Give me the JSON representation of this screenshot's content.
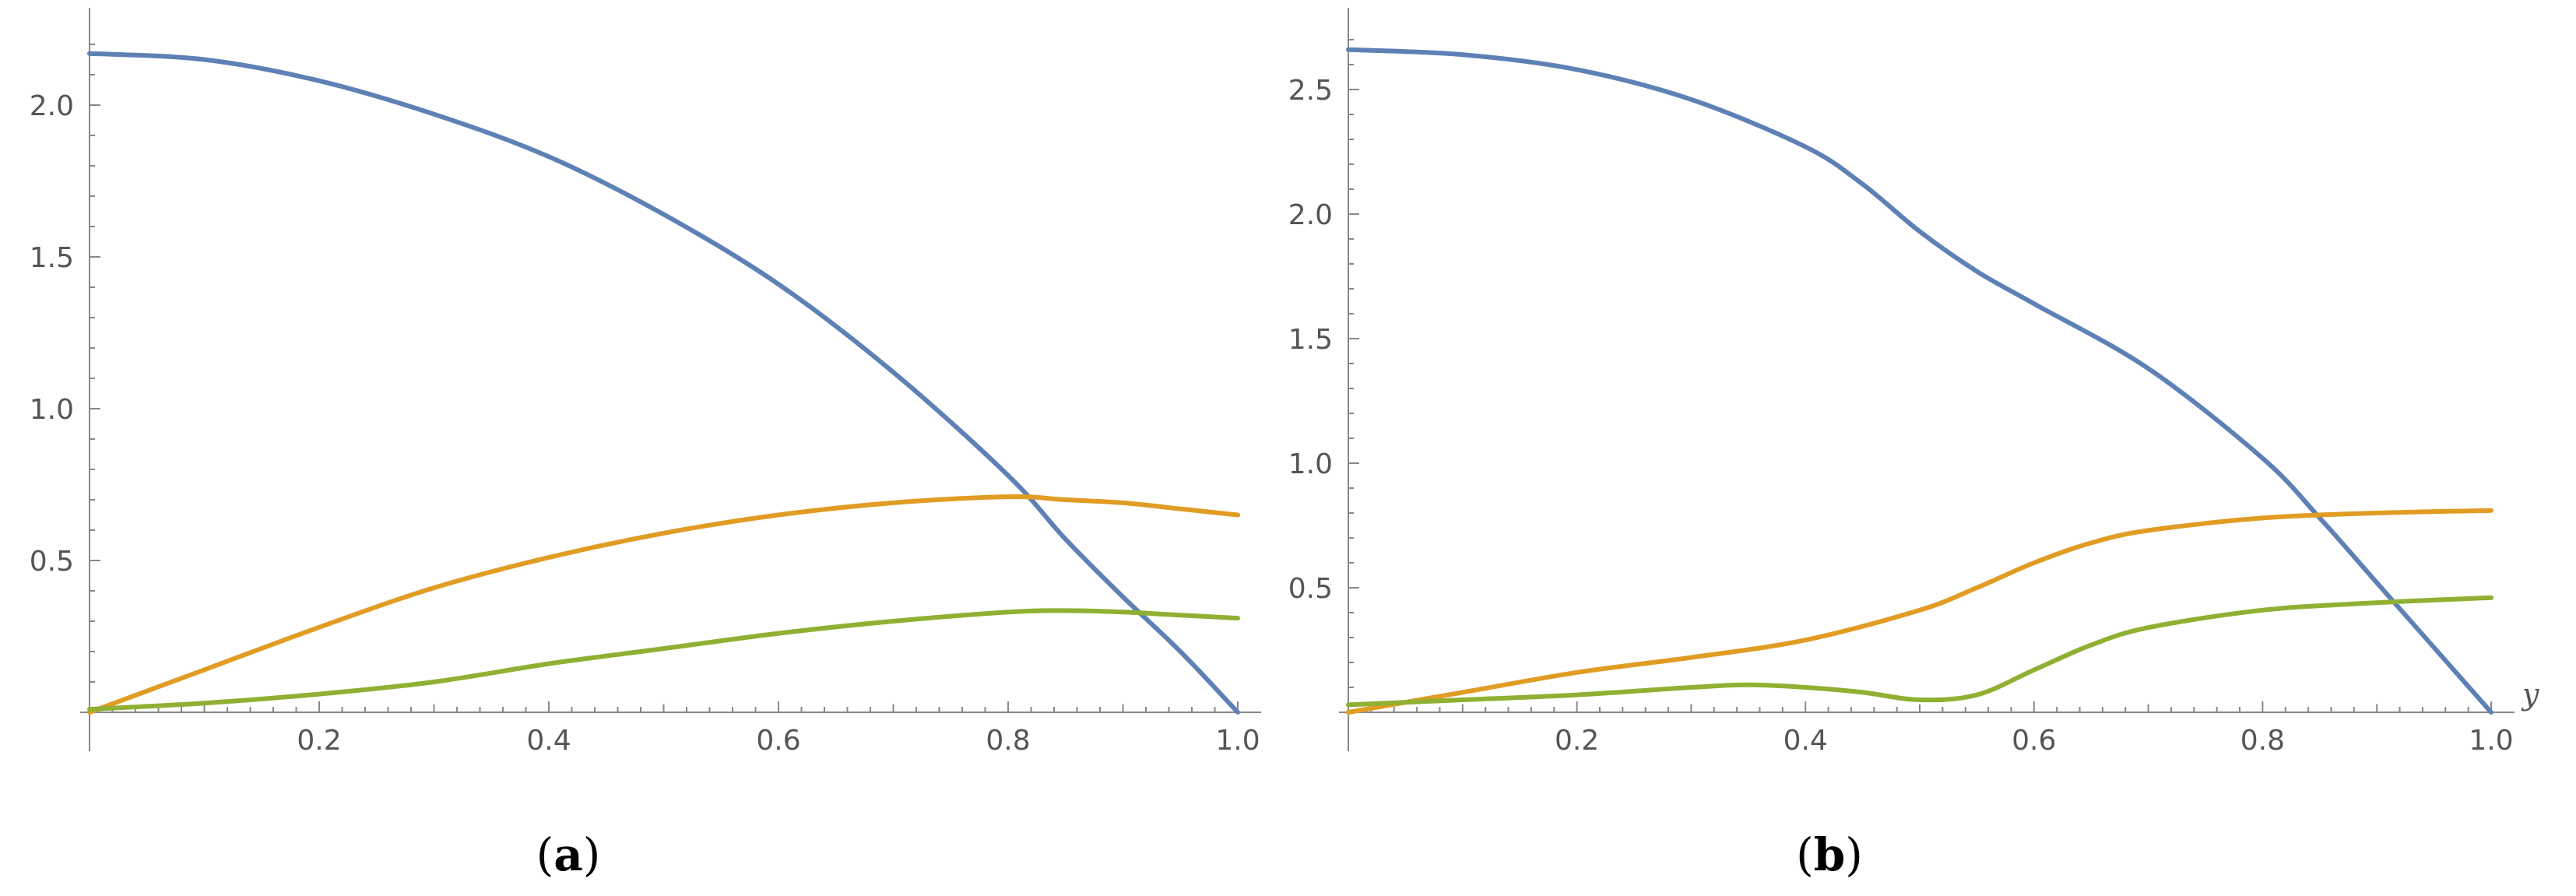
{
  "chart_data": [
    {
      "type": "line",
      "panel_label": "a",
      "xlim": [
        0,
        1.0
      ],
      "ylim": [
        0,
        2.2
      ],
      "x_ticks": [
        0.2,
        0.4,
        0.6,
        0.8,
        1.0
      ],
      "x_tick_labels": [
        "0.2",
        "0.4",
        "0.6",
        "0.8",
        "1.0"
      ],
      "y_ticks": [
        0.5,
        1.0,
        1.5,
        2.0
      ],
      "y_tick_labels": [
        "0.5",
        "1.0",
        "1.5",
        "2.0"
      ],
      "xlabel": "",
      "ylabel": "",
      "grid": false,
      "series": [
        {
          "color": "#5e81b5",
          "x": [
            0,
            0.1,
            0.2,
            0.3,
            0.4,
            0.5,
            0.6,
            0.7,
            0.8,
            0.85,
            0.9,
            0.95,
            1.0
          ],
          "y": [
            2.17,
            2.15,
            2.08,
            1.97,
            1.83,
            1.64,
            1.41,
            1.12,
            0.78,
            0.57,
            0.38,
            0.2,
            0.0
          ]
        },
        {
          "color": "#e19c24",
          "x": [
            0,
            0.1,
            0.2,
            0.3,
            0.4,
            0.5,
            0.6,
            0.7,
            0.8,
            0.85,
            0.9,
            0.95,
            1.0
          ],
          "y": [
            0.0,
            0.14,
            0.28,
            0.41,
            0.51,
            0.59,
            0.65,
            0.69,
            0.71,
            0.7,
            0.69,
            0.67,
            0.65
          ]
        },
        {
          "color": "#8fb032",
          "x": [
            0,
            0.1,
            0.2,
            0.3,
            0.4,
            0.5,
            0.6,
            0.7,
            0.8,
            0.85,
            0.9,
            0.95,
            1.0
          ],
          "y": [
            0.01,
            0.03,
            0.06,
            0.1,
            0.16,
            0.21,
            0.26,
            0.3,
            0.33,
            0.335,
            0.33,
            0.32,
            0.31
          ]
        }
      ]
    },
    {
      "type": "line",
      "panel_label": "b",
      "xlim": [
        0,
        1.0
      ],
      "ylim": [
        0,
        2.7
      ],
      "x_ticks": [
        0.2,
        0.4,
        0.6,
        0.8,
        1.0
      ],
      "x_tick_labels": [
        "0.2",
        "0.4",
        "0.6",
        "0.8",
        "1.0"
      ],
      "y_ticks": [
        0.5,
        1.0,
        1.5,
        2.0,
        2.5
      ],
      "y_tick_labels": [
        "0.5",
        "1.0",
        "1.5",
        "2.0",
        "2.5"
      ],
      "xlabel": "y",
      "ylabel": "",
      "grid": false,
      "series": [
        {
          "color": "#5e81b5",
          "x": [
            0,
            0.1,
            0.2,
            0.3,
            0.4,
            0.45,
            0.5,
            0.55,
            0.6,
            0.7,
            0.8,
            0.85,
            0.9,
            0.95,
            1.0
          ],
          "y": [
            2.66,
            2.64,
            2.58,
            2.46,
            2.27,
            2.12,
            1.93,
            1.77,
            1.64,
            1.38,
            1.02,
            0.78,
            0.52,
            0.26,
            0.0
          ]
        },
        {
          "color": "#e19c24",
          "x": [
            0,
            0.1,
            0.2,
            0.3,
            0.4,
            0.5,
            0.55,
            0.6,
            0.65,
            0.7,
            0.8,
            0.9,
            1.0
          ],
          "y": [
            0.0,
            0.08,
            0.16,
            0.22,
            0.29,
            0.41,
            0.5,
            0.6,
            0.68,
            0.73,
            0.78,
            0.8,
            0.81
          ]
        },
        {
          "color": "#8fb032",
          "x": [
            0,
            0.1,
            0.2,
            0.3,
            0.35,
            0.4,
            0.45,
            0.5,
            0.55,
            0.6,
            0.65,
            0.7,
            0.8,
            0.9,
            1.0
          ],
          "y": [
            0.03,
            0.05,
            0.07,
            0.1,
            0.11,
            0.1,
            0.08,
            0.05,
            0.07,
            0.17,
            0.27,
            0.34,
            0.41,
            0.44,
            0.46
          ]
        }
      ]
    }
  ]
}
